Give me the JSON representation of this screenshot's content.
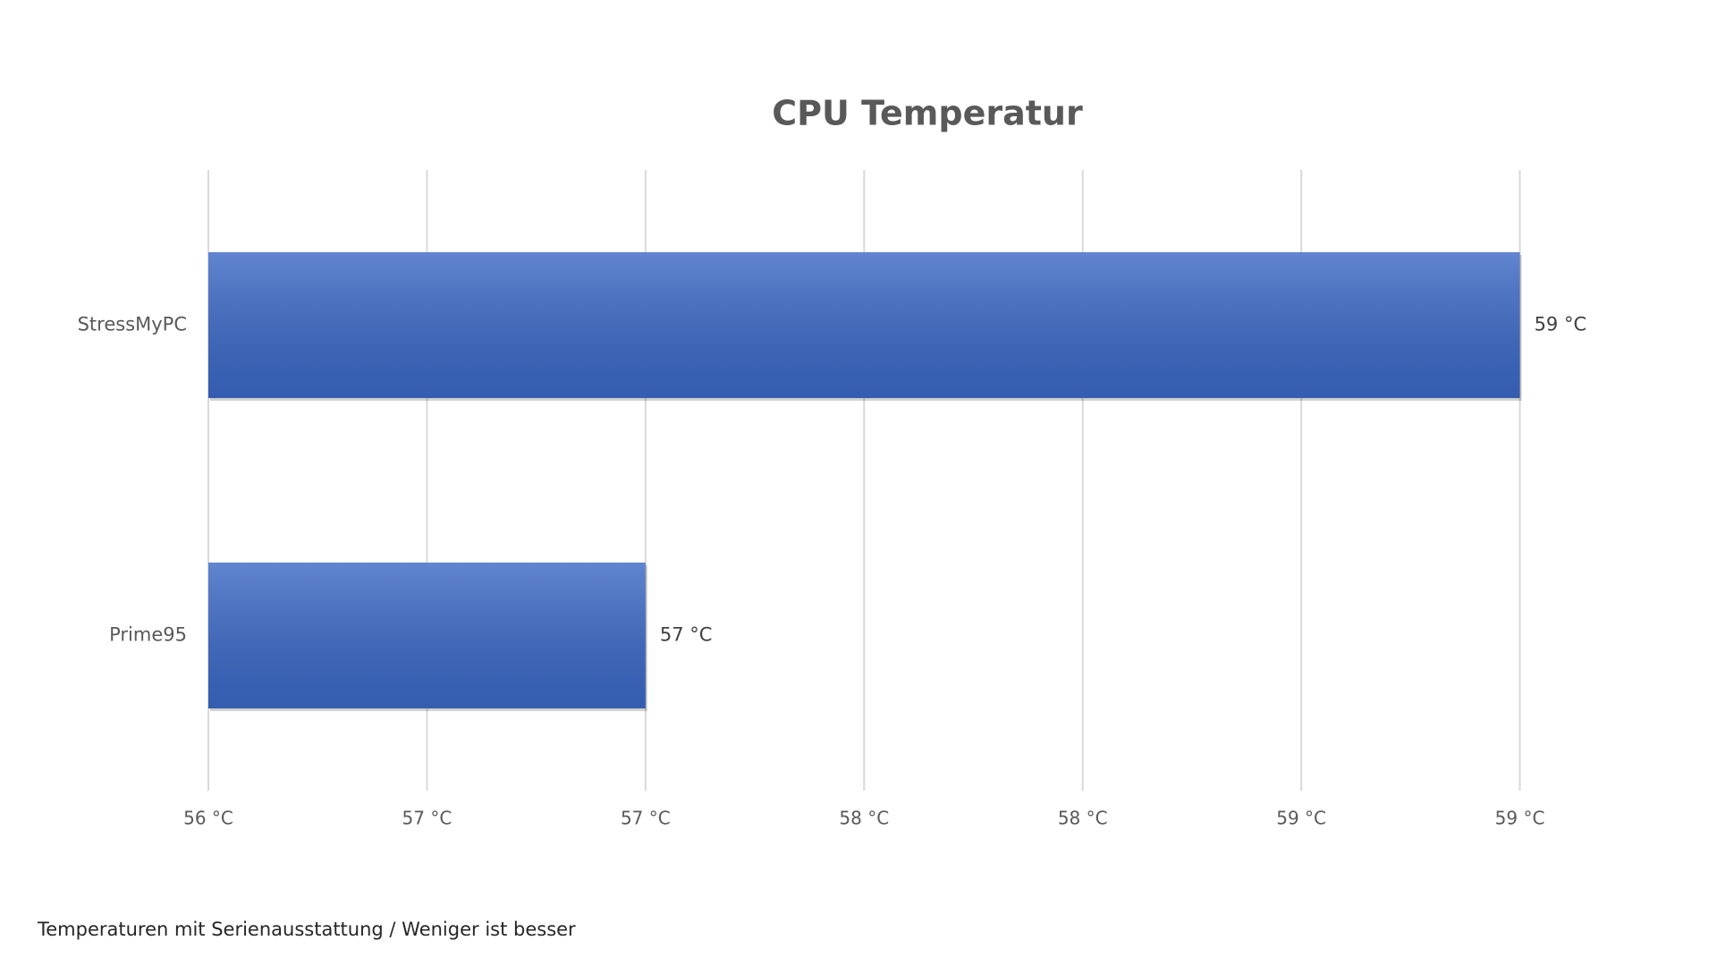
{
  "chart_data": {
    "type": "barh",
    "title": "CPU Temperatur",
    "categories": [
      "StressMyPC",
      "Prime95"
    ],
    "values": [
      59,
      57
    ],
    "value_labels": [
      "59 °C",
      "57 °C"
    ],
    "color": "#3a67c4",
    "xlim": [
      56,
      59.5
    ],
    "xticks": [
      {
        "value": 56,
        "label": "56 °C"
      },
      {
        "value": 56.5,
        "label": "57 °C"
      },
      {
        "value": 57,
        "label": "57 °C"
      },
      {
        "value": 57.5,
        "label": "58 °C"
      },
      {
        "value": 58,
        "label": "58 °C"
      },
      {
        "value": 58.5,
        "label": "59 °C"
      },
      {
        "value": 59,
        "label": "59 °C"
      }
    ],
    "grid": true,
    "footnote": "Temperaturen mit Serienausstattung / Weniger ist besser"
  }
}
